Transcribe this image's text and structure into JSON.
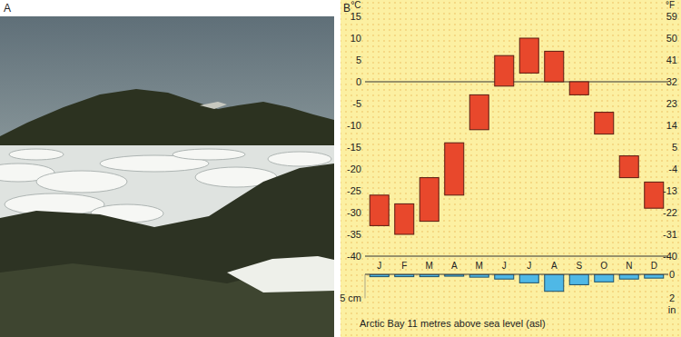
{
  "panels": {
    "photo_label": "A",
    "chart_label": "B"
  },
  "chart_data": [
    {
      "type": "range_bar",
      "categories": [
        "J",
        "F",
        "M",
        "A",
        "M",
        "J",
        "J",
        "A",
        "S",
        "O",
        "N",
        "D"
      ],
      "values": [
        [
          -33,
          -26
        ],
        [
          -35,
          -28
        ],
        [
          -32,
          -22
        ],
        [
          -26,
          -14
        ],
        [
          -11,
          -3
        ],
        [
          -1,
          6
        ],
        [
          2,
          10
        ],
        [
          0,
          7
        ],
        [
          -3,
          0
        ],
        [
          -12,
          -7
        ],
        [
          -22,
          -17
        ],
        [
          -29,
          -23
        ]
      ],
      "color": "#e8482c",
      "ylim": [
        -40,
        15
      ],
      "yticks": [
        15,
        10,
        5,
        0,
        -5,
        -10,
        -15,
        -20,
        -25,
        -30,
        -35,
        -40
      ],
      "y_label": "°C",
      "y2lim": [
        -40,
        59
      ],
      "y2ticks": [
        59,
        50,
        41,
        32,
        23,
        14,
        5,
        -4,
        -13,
        -22,
        -31,
        -40
      ],
      "y2_label": "°F",
      "baseline": 0,
      "grid": false
    },
    {
      "type": "bar",
      "values": [
        0.5,
        0.5,
        0.5,
        0.4,
        0.6,
        1.0,
        1.8,
        3.6,
        2.2,
        1.6,
        1.0,
        0.8
      ],
      "color": "#4fb8e6",
      "ylim": [
        0,
        5.08
      ],
      "yticks": [
        {
          "value": 5,
          "label": "5 cm"
        }
      ],
      "y2lim": [
        0,
        2
      ],
      "y2ticks": [
        0,
        2
      ],
      "y2_label": "in",
      "grid": false,
      "title": "Arctic Bay 11 metres above sea level (asl)"
    }
  ]
}
